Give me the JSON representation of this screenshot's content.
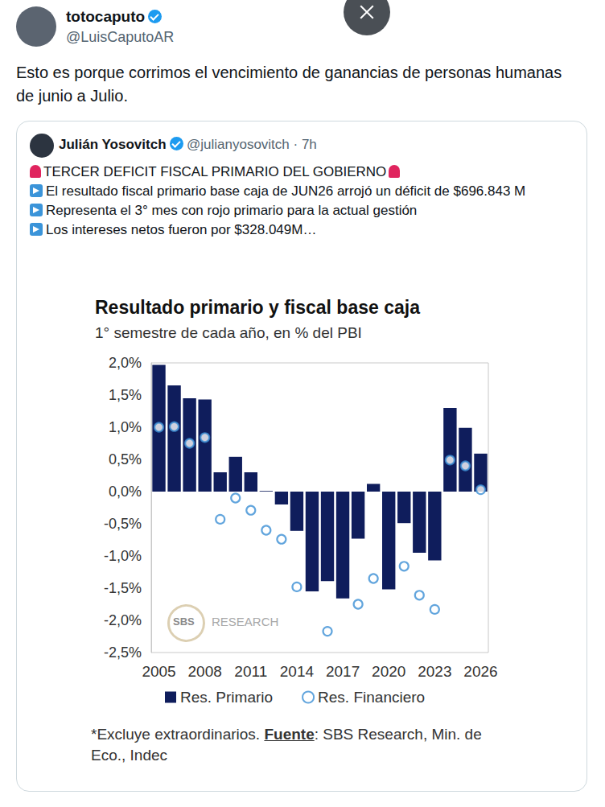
{
  "tweet": {
    "name": "totocaputo",
    "handle": "@LuisCaputoAR",
    "text": "Esto es porque corrimos el vencimiento de ganancias de personas humanas de junio a Julio."
  },
  "quoted": {
    "name": "Julián Yosovitch",
    "handle": "@julianyosovitch · 7h",
    "lines": [
      "TERCER DEFICIT FISCAL PRIMARIO DEL GOBIERNO",
      "El resultado fiscal primario base caja de JUN26 arrojó un déficit de $696.843 M",
      "Representa el 3° mes con rojo primario para la actual gestión",
      "Los intereses netos fueron por $328.049M…"
    ]
  },
  "chart_data": {
    "type": "bar",
    "title": "Resultado primario y fiscal base caja",
    "subtitle": "1° semestre de cada año, en % del PBI",
    "categories": [
      "2005",
      null,
      null,
      "2008",
      null,
      null,
      "2011",
      null,
      null,
      "2014",
      null,
      null,
      "2017",
      null,
      null,
      "2020",
      null,
      null,
      "2023",
      null,
      null,
      "2026"
    ],
    "series": [
      {
        "name": "Res. Primario",
        "type": "bar",
        "color": "#0f1d5c",
        "values": [
          1.97,
          1.65,
          1.45,
          1.43,
          0.3,
          0.54,
          0.3,
          0.01,
          -0.2,
          -0.61,
          -1.55,
          -1.39,
          -1.66,
          -0.73,
          0.12,
          -1.52,
          -0.49,
          -0.95,
          -1.07,
          1.3,
          0.99,
          0.59
        ]
      },
      {
        "name": "Res. Financiero",
        "type": "scatter",
        "color": "#3b8fd4",
        "marker": "circle",
        "values": [
          1.0,
          1.01,
          0.75,
          0.84,
          -0.43,
          -0.1,
          -0.29,
          -0.6,
          -0.74,
          -1.48,
          null,
          -2.17,
          null,
          -1.75,
          -1.35,
          null,
          -1.16,
          -1.61,
          -1.83,
          0.49,
          0.4,
          0.03
        ]
      }
    ],
    "ylim": [
      -2.5,
      2.0
    ],
    "yticks": [
      {
        "value": -2.5,
        "label": "-2,5%"
      },
      {
        "value": -2.0,
        "label": "-2,0%"
      },
      {
        "value": -1.5,
        "label": "-1,5%"
      },
      {
        "value": -1.0,
        "label": "-1,0%"
      },
      {
        "value": -0.5,
        "label": "-0,5%"
      },
      {
        "value": 0,
        "label": "0,0%"
      },
      {
        "value": 0.5,
        "label": "0,5%"
      },
      {
        "value": 1.0,
        "label": "1,0%"
      },
      {
        "value": 1.5,
        "label": "1,5%"
      },
      {
        "value": 2.0,
        "label": "2,0%"
      }
    ],
    "grid": false,
    "legend": "bottom",
    "watermark": [
      "SBS",
      "RESEARCH"
    ],
    "footnote": [
      "*Excluye extraordinarios. ",
      "Fuente",
      ": SBS Research, Min. de Eco., Indec"
    ]
  }
}
